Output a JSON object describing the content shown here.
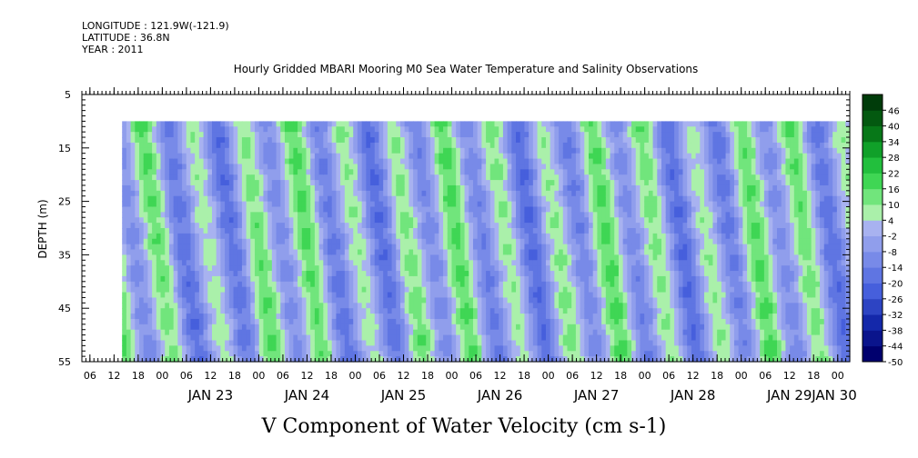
{
  "header": {
    "longitude": "LONGITUDE : 121.9W(-121.9)",
    "latitude": "LATITUDE : 36.8N",
    "year": "YEAR : 2011"
  },
  "chart_data": {
    "type": "heatmap",
    "title": "Hourly Gridded MBARI Mooring M0 Sea Water Temperature and Salinity Observations",
    "xlabel": "V Component of Water Velocity (cm s-1)",
    "ylabel": "DEPTH (m)",
    "x_range": [
      "2011-01-22T04:00",
      "2011-01-30T03:00"
    ],
    "x_tick_hour_labels": [
      "06",
      "12",
      "18",
      "00",
      "06",
      "12",
      "18",
      "00",
      "06",
      "12",
      "18",
      "00",
      "06",
      "12",
      "18",
      "00",
      "06",
      "12",
      "18",
      "00",
      "06",
      "12",
      "18",
      "00",
      "06",
      "12",
      "18",
      "00",
      "06",
      "12",
      "18",
      "00"
    ],
    "x_date_labels": [
      "JAN 23",
      "JAN 24",
      "JAN 25",
      "JAN 26",
      "JAN 27",
      "JAN 28",
      "JAN 29",
      "JAN 30"
    ],
    "y_range": [
      55,
      5
    ],
    "y_ticks": [
      5,
      15,
      25,
      35,
      45,
      55
    ],
    "data_extent": {
      "x_start": "2011-01-22T14:00",
      "depth_top": 10,
      "depth_bottom": 55
    },
    "colorbar": {
      "labels": [
        "46",
        "40",
        "34",
        "28",
        "22",
        "16",
        "10",
        "4",
        "-2",
        "-8",
        "-14",
        "-20",
        "-26",
        "-32",
        "-38",
        "-44",
        "-50"
      ],
      "range": [
        -50,
        52
      ]
    },
    "grid": false,
    "legend": "right colorbar",
    "colors": {
      "negative": "#6a80e6",
      "positive": "#2ed04e",
      "near_zero": "#a8f0a8"
    }
  }
}
